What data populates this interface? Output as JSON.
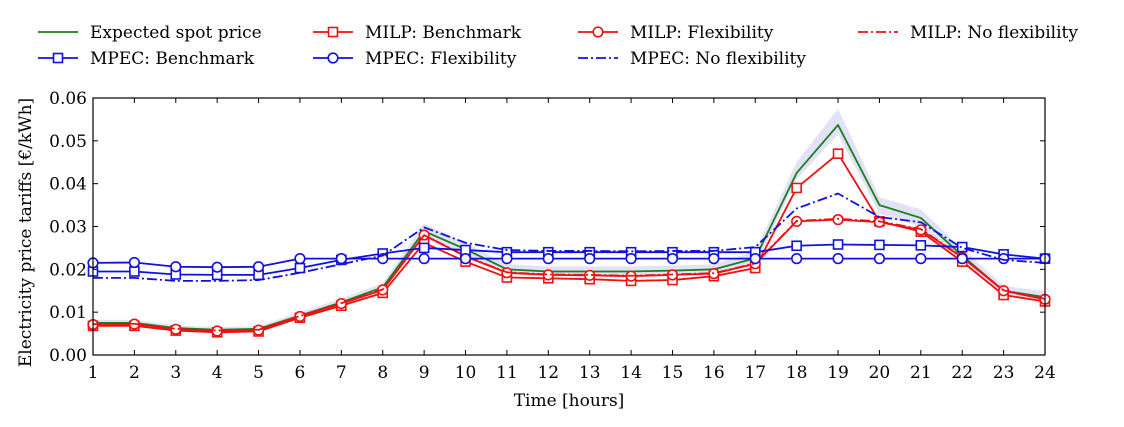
{
  "chart_data": {
    "type": "line",
    "title": "",
    "xlabel": "Time [hours]",
    "ylabel": "Electricity price tariffs [€/kWh]",
    "xlim": [
      1,
      24
    ],
    "ylim": [
      0.0,
      0.06
    ],
    "x": [
      1,
      2,
      3,
      4,
      5,
      6,
      7,
      8,
      9,
      10,
      11,
      12,
      13,
      14,
      15,
      16,
      17,
      18,
      19,
      20,
      21,
      22,
      23,
      24
    ],
    "x_tick_labels": [
      "1",
      "2",
      "3",
      "4",
      "5",
      "6",
      "7",
      "8",
      "9",
      "10",
      "11",
      "12",
      "13",
      "14",
      "15",
      "16",
      "17",
      "18",
      "19",
      "20",
      "21",
      "22",
      "23",
      "24"
    ],
    "y_ticks": [
      0.0,
      0.01,
      0.02,
      0.03,
      0.04,
      0.05,
      0.06
    ],
    "y_tick_labels": [
      "0.00",
      "0.01",
      "0.02",
      "0.03",
      "0.04",
      "0.05",
      "0.06"
    ],
    "band": {
      "color": "#c8c8f0",
      "lower": [
        0.0068,
        0.0068,
        0.0057,
        0.0053,
        0.0055,
        0.0085,
        0.0115,
        0.0148,
        0.0272,
        0.0232,
        0.0188,
        0.0183,
        0.0183,
        0.0183,
        0.0185,
        0.0188,
        0.021,
        0.041,
        0.0515,
        0.033,
        0.03,
        0.0215,
        0.0138,
        0.0122
      ],
      "upper": [
        0.0082,
        0.0082,
        0.0069,
        0.0065,
        0.0067,
        0.01,
        0.0132,
        0.0168,
        0.0307,
        0.0262,
        0.0212,
        0.0207,
        0.0207,
        0.0207,
        0.0209,
        0.0212,
        0.0242,
        0.045,
        0.0575,
        0.0368,
        0.034,
        0.0248,
        0.0162,
        0.0148
      ]
    },
    "series": [
      {
        "name": "Expected spot price",
        "color": "#1a7f1a",
        "dash": "",
        "marker": "none",
        "values": [
          0.0075,
          0.0075,
          0.0063,
          0.0059,
          0.0061,
          0.0092,
          0.0123,
          0.0158,
          0.0289,
          0.0247,
          0.02,
          0.0195,
          0.0195,
          0.0195,
          0.0197,
          0.02,
          0.0226,
          0.0425,
          0.0537,
          0.035,
          0.032,
          0.0232,
          0.015,
          0.0135
        ]
      },
      {
        "name": "MILP: Benchmark",
        "color": "#ee1111",
        "dash": "",
        "marker": "square",
        "values": [
          0.0068,
          0.0068,
          0.0057,
          0.0053,
          0.0055,
          0.0087,
          0.0115,
          0.0145,
          0.0262,
          0.0218,
          0.0181,
          0.0179,
          0.0177,
          0.0173,
          0.0175,
          0.0184,
          0.0203,
          0.039,
          0.047,
          0.0312,
          0.0288,
          0.0218,
          0.014,
          0.0125
        ]
      },
      {
        "name": "MILP: Flexibility",
        "color": "#ee1111",
        "dash": "",
        "marker": "circle",
        "values": [
          0.0071,
          0.0072,
          0.006,
          0.0056,
          0.0058,
          0.009,
          0.012,
          0.0152,
          0.028,
          0.023,
          0.0192,
          0.0187,
          0.0186,
          0.0184,
          0.0187,
          0.019,
          0.0213,
          0.0312,
          0.0316,
          0.031,
          0.0292,
          0.0228,
          0.015,
          0.013
        ]
      },
      {
        "name": "MILP: No flexibility",
        "color": "#ee1111",
        "dash": "10,3,2,3",
        "marker": "none",
        "values": [
          0.0072,
          0.0073,
          0.0061,
          0.0057,
          0.0059,
          0.0091,
          0.0121,
          0.0153,
          0.028,
          0.0231,
          0.0193,
          0.0188,
          0.0187,
          0.0185,
          0.0188,
          0.0191,
          0.0214,
          0.0313,
          0.0318,
          0.0312,
          0.0294,
          0.0229,
          0.0151,
          0.0131
        ]
      },
      {
        "name": "MPEC: Benchmark",
        "color": "#1111dd",
        "dash": "",
        "marker": "square",
        "values": [
          0.0195,
          0.0195,
          0.0188,
          0.0187,
          0.0187,
          0.0203,
          0.0222,
          0.0237,
          0.025,
          0.0245,
          0.024,
          0.024,
          0.024,
          0.024,
          0.024,
          0.024,
          0.024,
          0.0255,
          0.0258,
          0.0257,
          0.0256,
          0.0252,
          0.0235,
          0.0225
        ]
      },
      {
        "name": "MPEC: Flexibility",
        "color": "#1111dd",
        "dash": "",
        "marker": "circle",
        "values": [
          0.0215,
          0.0216,
          0.0206,
          0.0205,
          0.0206,
          0.0225,
          0.0225,
          0.0225,
          0.0225,
          0.0225,
          0.0225,
          0.0225,
          0.0225,
          0.0225,
          0.0225,
          0.0225,
          0.0225,
          0.0225,
          0.0225,
          0.0225,
          0.0225,
          0.0225,
          0.0225,
          0.0225
        ]
      },
      {
        "name": "MPEC: No flexibility",
        "color": "#1111dd",
        "dash": "10,3,2,3",
        "marker": "none",
        "values": [
          0.018,
          0.018,
          0.0173,
          0.0173,
          0.0175,
          0.0192,
          0.0212,
          0.0232,
          0.0298,
          0.0262,
          0.0245,
          0.0243,
          0.0243,
          0.0242,
          0.0243,
          0.0243,
          0.0252,
          0.0342,
          0.0377,
          0.0322,
          0.031,
          0.025,
          0.0222,
          0.0215
        ]
      }
    ],
    "legend": {
      "position": "top",
      "order": [
        0,
        1,
        2,
        3,
        4,
        5,
        6
      ]
    }
  }
}
